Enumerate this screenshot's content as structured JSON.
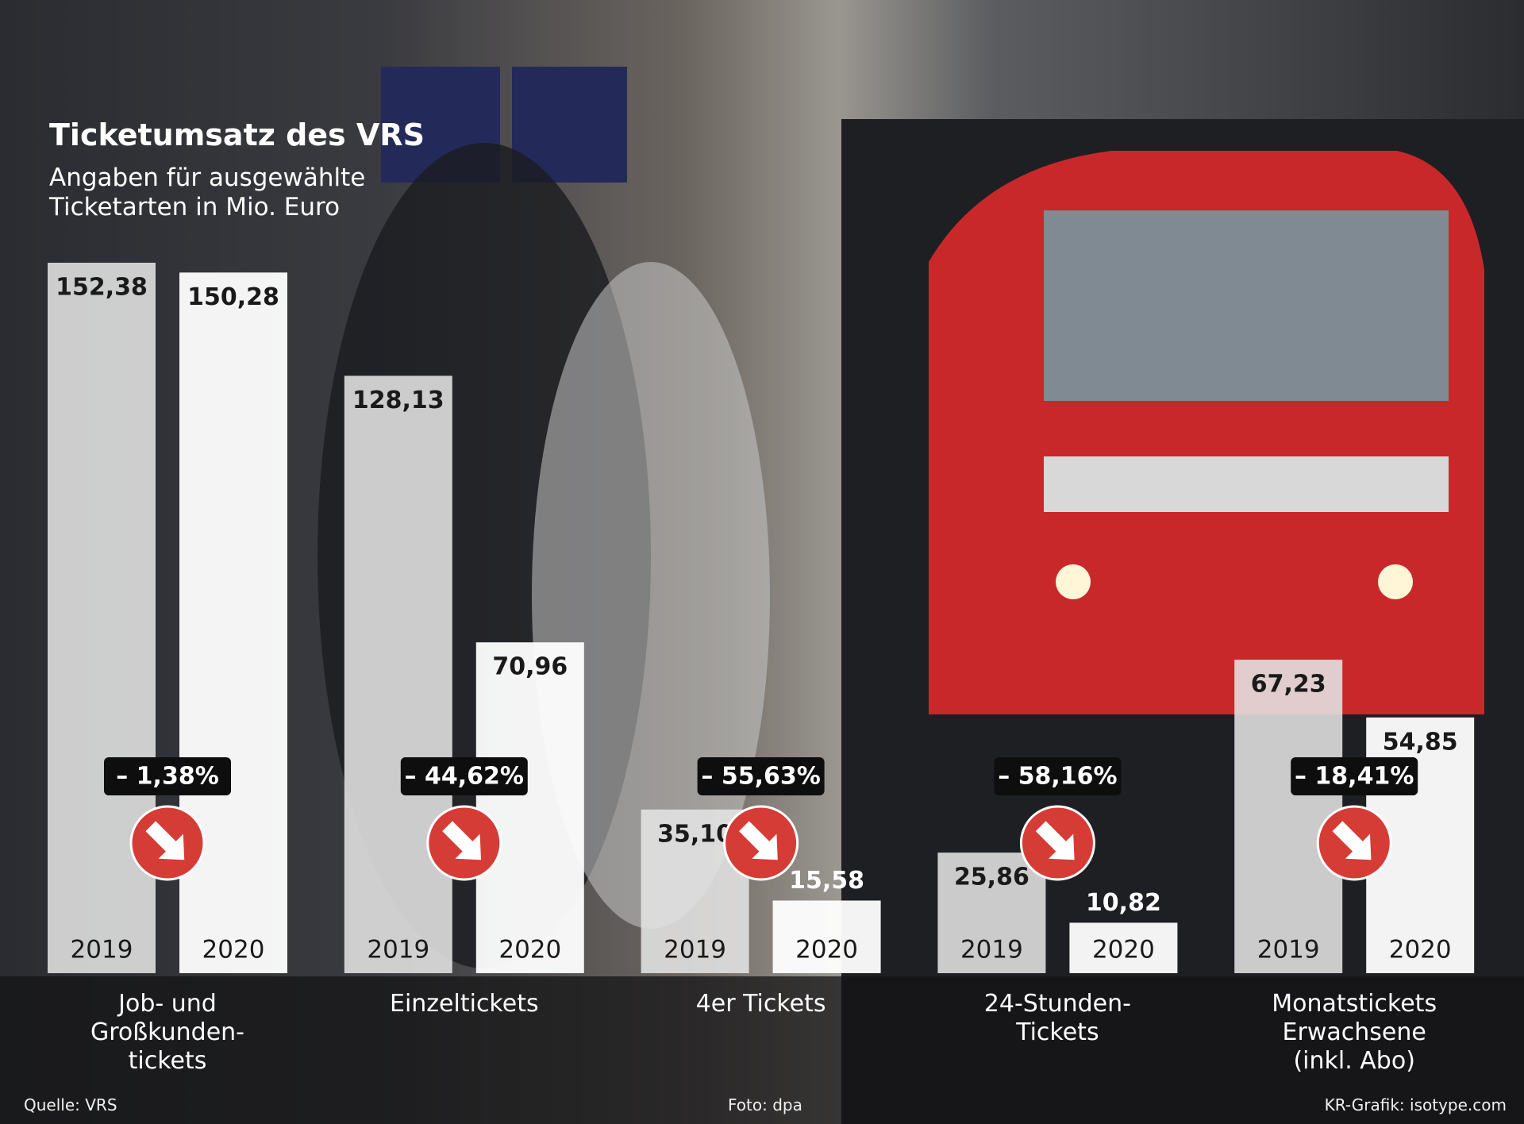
{
  "chart_data": {
    "type": "bar",
    "title": "Ticketumsatz des VRS",
    "subtitle": "Angaben für ausgewählte\nTicketarten in Mio. Euro",
    "categories": [
      "Job- und\nGroßkunden-\ntickets",
      "Einzeltickets",
      "4er Tickets",
      "24-Stunden-\nTickets",
      "Monatstickets\nErwachsene\n(inkl. Abo)"
    ],
    "series": [
      {
        "name": "2019",
        "color": "#e4e4e4",
        "values": [
          152.38,
          128.13,
          35.1,
          25.86,
          67.23
        ],
        "value_labels": [
          "152,38",
          "128,13",
          "35,10",
          "25,86",
          "67,23"
        ]
      },
      {
        "name": "2020",
        "color": "#ffffff",
        "values": [
          150.28,
          70.96,
          15.58,
          10.82,
          54.85
        ],
        "value_labels": [
          "150,28",
          "70,96",
          "15,58",
          "10,82",
          "54,85"
        ]
      }
    ],
    "change_labels": [
      "– 1,38%",
      "– 44,62%",
      "– 55,63%",
      "– 58,16%",
      "– 18,41%"
    ],
    "source": "Quelle: VRS",
    "photo_credit": "Foto: dpa",
    "graphic_credit": "KR-Grafik: isotype.com"
  }
}
